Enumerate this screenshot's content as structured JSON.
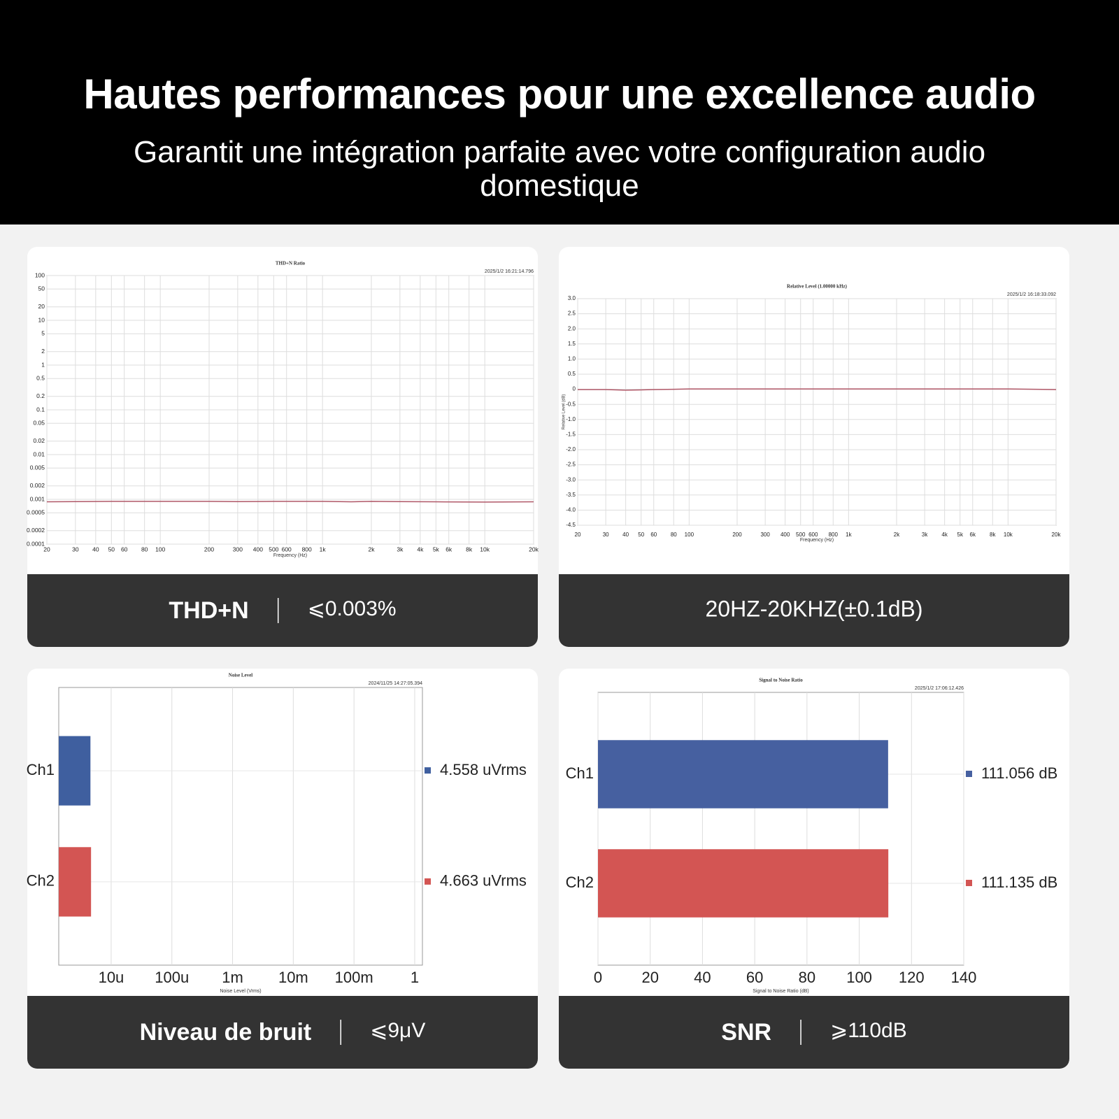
{
  "header": {
    "title": "Hautes performances pour une excellence audio",
    "subtitle": "Garantit une intégration parfaite avec votre configuration audio domestique"
  },
  "chart_data": [
    {
      "type": "line",
      "title": "THD+N Ratio",
      "timestamp": "2025/1/2 16:21:14.796",
      "xlabel": "Frequency (Hz)",
      "xscale": "log",
      "yscale": "log",
      "grid": true,
      "x": [
        20,
        30,
        50,
        100,
        200,
        300,
        500,
        1000,
        1500,
        2000,
        3000,
        5000,
        10000,
        20000
      ],
      "series": [
        {
          "color": "#b05868",
          "values": [
            0.00088,
            0.00089,
            0.0009,
            0.0009,
            0.0009,
            0.00089,
            0.0009,
            0.0009,
            0.00088,
            0.0009,
            0.00089,
            0.00088,
            0.00087,
            0.00088
          ]
        }
      ],
      "xlim": [
        20,
        20000
      ],
      "ylim": [
        0.0001,
        100
      ],
      "xticks": [
        20,
        30,
        40,
        50,
        60,
        80,
        100,
        200,
        300,
        400,
        500,
        600,
        800,
        {
          "value": 1000,
          "label": "1k"
        },
        {
          "value": 2000,
          "label": "2k"
        },
        {
          "value": 3000,
          "label": "3k"
        },
        {
          "value": 4000,
          "label": "4k"
        },
        {
          "value": 5000,
          "label": "5k"
        },
        {
          "value": 6000,
          "label": "6k"
        },
        {
          "value": 8000,
          "label": "8k"
        },
        {
          "value": 10000,
          "label": "10k"
        },
        {
          "value": 20000,
          "label": "20k"
        }
      ],
      "yticks": [
        100,
        50,
        20,
        10,
        5,
        2,
        1,
        0.5,
        0.2,
        0.1,
        0.05,
        0.02,
        0.01,
        0.005,
        0.002,
        0.001,
        0.0005,
        0.0002,
        0.0001
      ]
    },
    {
      "type": "line",
      "title": "Relative Level (1.00000 kHz)",
      "timestamp": "2025/1/2 16:18:33.092",
      "xlabel": "Frequency (Hz)",
      "ylabel": "Relative Level (dB)",
      "xscale": "log",
      "grid": true,
      "x": [
        20,
        30,
        40,
        50,
        60,
        80,
        100,
        200,
        500,
        1000,
        2000,
        5000,
        10000,
        20000
      ],
      "series": [
        {
          "color": "#b05868",
          "values": [
            -0.01,
            -0.01,
            -0.03,
            -0.02,
            -0.01,
            0,
            0.01,
            0.01,
            0.01,
            0.01,
            0.01,
            0.01,
            0.01,
            -0.01
          ]
        }
      ],
      "xlim": [
        20,
        20000
      ],
      "ylim": [
        -4.5,
        3
      ],
      "xticks": [
        20,
        30,
        40,
        50,
        60,
        80,
        100,
        200,
        300,
        400,
        500,
        600,
        800,
        {
          "value": 1000,
          "label": "1k"
        },
        {
          "value": 2000,
          "label": "2k"
        },
        {
          "value": 3000,
          "label": "3k"
        },
        {
          "value": 4000,
          "label": "4k"
        },
        {
          "value": 5000,
          "label": "5k"
        },
        {
          "value": 6000,
          "label": "6k"
        },
        {
          "value": 8000,
          "label": "8k"
        },
        {
          "value": 10000,
          "label": "10k"
        },
        {
          "value": 20000,
          "label": "20k"
        }
      ],
      "yticks": [
        {
          "value": 3,
          "label": "3.0"
        },
        2.5,
        {
          "value": 2,
          "label": "2.0"
        },
        1.5,
        {
          "value": 1,
          "label": "1.0"
        },
        0.5,
        0,
        -0.5,
        {
          "value": -1,
          "label": "-1.0"
        },
        -1.5,
        {
          "value": -2,
          "label": "-2.0"
        },
        -2.5,
        {
          "value": -3,
          "label": "-3.0"
        },
        -3.5,
        {
          "value": -4,
          "label": "-4.0"
        },
        -4.5
      ]
    },
    {
      "type": "bar",
      "orientation": "horizontal",
      "title": "Noise Level",
      "timestamp": "2024/11/25 14:27:05.394",
      "xlabel": "Noise Level (Vrms)",
      "xscale": "log",
      "grid": true,
      "categories": [
        "Ch1",
        "Ch2"
      ],
      "values": [
        4.558e-06,
        4.663e-06
      ],
      "value_labels": [
        "4.558  uVrms",
        "4.663  uVrms"
      ],
      "colors": [
        "#3f5f9f",
        "#d35553"
      ],
      "xlim": [
        1.37e-06,
        1.34
      ],
      "xticks": [
        {
          "value": 1e-05,
          "label": "10u"
        },
        {
          "value": 0.0001,
          "label": "100u"
        },
        {
          "value": 0.001,
          "label": "1m"
        },
        {
          "value": 0.01,
          "label": "10m"
        },
        {
          "value": 0.1,
          "label": "100m"
        },
        1
      ]
    },
    {
      "type": "bar",
      "orientation": "horizontal",
      "title": "Signal to Noise Ratio",
      "timestamp": "2025/1/2 17:06:12.426",
      "xlabel": "Signal to Noise Ratio (dB)",
      "grid": true,
      "categories": [
        "Ch1",
        "Ch2"
      ],
      "values": [
        111.056,
        111.135
      ],
      "value_labels": [
        "111.056 dB",
        "111.135 dB"
      ],
      "colors": [
        "#4660a0",
        "#d35553"
      ],
      "xlim": [
        0,
        140
      ],
      "xticks": [
        0,
        20,
        40,
        60,
        80,
        100,
        120,
        140
      ]
    }
  ],
  "captions": [
    {
      "label": "THD+N",
      "value": "⩽0.003%"
    },
    {
      "value": "20HZ-20KHZ(±0.1dB)"
    },
    {
      "label": "Niveau de bruit",
      "value": "⩽9μV"
    },
    {
      "label": "SNR",
      "value": "⩾110dB"
    }
  ]
}
